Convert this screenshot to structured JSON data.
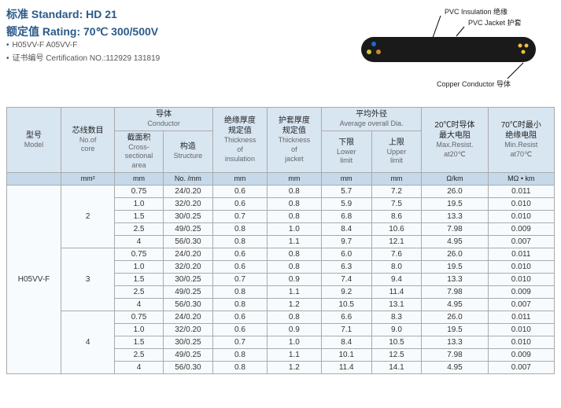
{
  "header": {
    "standard_label": "标准 Standard: HD  21",
    "rating_label": "额定值 Rating: 70℃  300/500V",
    "models": "H05VV-F  A05VV-F",
    "cert": "证书编号 Certification NO.:112929  131819"
  },
  "diagram": {
    "pvc_insulation": "PVC Insulation  绝缘",
    "pvc_jacket": "PVC Jacket  护套",
    "copper_conductor": "Copper  Conductor  导体"
  },
  "columns": {
    "model": {
      "cn": "型号",
      "en": "Model"
    },
    "cores": {
      "cn": "芯线数目",
      "en": "No.of",
      "en2": "core"
    },
    "conductor": {
      "cn": "导体",
      "en": "Conductor"
    },
    "cross_section": {
      "cn": "截面积",
      "en": "Cross-",
      "en2": "sectional",
      "en3": "area"
    },
    "structure": {
      "cn": "构造",
      "en": "Structure"
    },
    "thickness_insulation": {
      "cn": "绝缘厚度",
      "cn2": "规定值",
      "en": "Thickness",
      "en2": "of",
      "en3": "insulation"
    },
    "thickness_jacket": {
      "cn": "护套厚度",
      "cn2": "规定值",
      "en": "Thickness",
      "en2": "of",
      "en3": "jacket"
    },
    "avg_dia": {
      "cn": "平均外径",
      "en": "Average overall Dia."
    },
    "lower": {
      "cn": "下限",
      "en": "Lower",
      "en2": "limit"
    },
    "upper": {
      "cn": "上限",
      "en": "Upper",
      "en2": "limit"
    },
    "max_resist": {
      "cn": "20℃时导体",
      "cn2": "最大电阻",
      "en": "Max.Resist.",
      "en2": "at20℃"
    },
    "min_resist": {
      "cn": "70℃时最小",
      "cn2": "绝缘电阻",
      "en": "Min.Resist",
      "en2": "at70℃"
    }
  },
  "units": {
    "cores": "mm²",
    "cross_section": "mm",
    "structure": "No. /mm",
    "insulation": "mm",
    "jacket": "mm",
    "lower": "mm",
    "upper": "mm",
    "max_resist": "Ω/km",
    "min_resist": "MΩ • km"
  },
  "model_name": "H05VV-F",
  "groups": [
    {
      "cores": "2",
      "rows": [
        {
          "cs": "0.75",
          "st": "24/0.20",
          "ti": "0.6",
          "tj": "0.8",
          "lo": "5.7",
          "up": "7.2",
          "mr": "26.0",
          "mn": "0.011"
        },
        {
          "cs": "1.0",
          "st": "32/0.20",
          "ti": "0.6",
          "tj": "0.8",
          "lo": "5.9",
          "up": "7.5",
          "mr": "19.5",
          "mn": "0.010"
        },
        {
          "cs": "1.5",
          "st": "30/0.25",
          "ti": "0.7",
          "tj": "0.8",
          "lo": "6.8",
          "up": "8.6",
          "mr": "13.3",
          "mn": "0.010"
        },
        {
          "cs": "2.5",
          "st": "49/0.25",
          "ti": "0.8",
          "tj": "1.0",
          "lo": "8.4",
          "up": "10.6",
          "mr": "7.98",
          "mn": "0.009"
        },
        {
          "cs": "4",
          "st": "56/0.30",
          "ti": "0.8",
          "tj": "1.1",
          "lo": "9.7",
          "up": "12.1",
          "mr": "4.95",
          "mn": "0.007"
        }
      ]
    },
    {
      "cores": "3",
      "rows": [
        {
          "cs": "0.75",
          "st": "24/0.20",
          "ti": "0.6",
          "tj": "0.8",
          "lo": "6.0",
          "up": "7.6",
          "mr": "26.0",
          "mn": "0.011"
        },
        {
          "cs": "1.0",
          "st": "32/0.20",
          "ti": "0.6",
          "tj": "0.8",
          "lo": "6.3",
          "up": "8.0",
          "mr": "19.5",
          "mn": "0.010"
        },
        {
          "cs": "1.5",
          "st": "30/0.25",
          "ti": "0.7",
          "tj": "0.9",
          "lo": "7.4",
          "up": "9.4",
          "mr": "13.3",
          "mn": "0.010"
        },
        {
          "cs": "2.5",
          "st": "49/0.25",
          "ti": "0.8",
          "tj": "1.1",
          "lo": "9.2",
          "up": "11.4",
          "mr": "7.98",
          "mn": "0.009"
        },
        {
          "cs": "4",
          "st": "56/0.30",
          "ti": "0.8",
          "tj": "1.2",
          "lo": "10.5",
          "up": "13.1",
          "mr": "4.95",
          "mn": "0.007"
        }
      ]
    },
    {
      "cores": "4",
      "rows": [
        {
          "cs": "0.75",
          "st": "24/0.20",
          "ti": "0.6",
          "tj": "0.8",
          "lo": "6.6",
          "up": "8.3",
          "mr": "26.0",
          "mn": "0.011"
        },
        {
          "cs": "1.0",
          "st": "32/0.20",
          "ti": "0.6",
          "tj": "0.9",
          "lo": "7.1",
          "up": "9.0",
          "mr": "19.5",
          "mn": "0.010"
        },
        {
          "cs": "1.5",
          "st": "30/0.25",
          "ti": "0.7",
          "tj": "1.0",
          "lo": "8.4",
          "up": "10.5",
          "mr": "13.3",
          "mn": "0.010"
        },
        {
          "cs": "2.5",
          "st": "49/0.25",
          "ti": "0.8",
          "tj": "1.1",
          "lo": "10.1",
          "up": "12.5",
          "mr": "7.98",
          "mn": "0.009"
        },
        {
          "cs": "4",
          "st": "56/0.30",
          "ti": "0.8",
          "tj": "1.2",
          "lo": "11.4",
          "up": "14.1",
          "mr": "4.95",
          "mn": "0.007"
        }
      ]
    }
  ]
}
